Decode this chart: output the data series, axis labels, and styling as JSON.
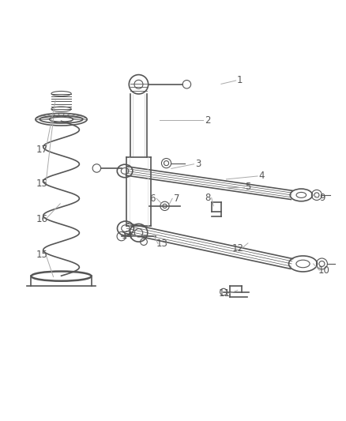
{
  "background_color": "#ffffff",
  "line_color": "#555555",
  "label_color": "#555555",
  "label_line_color": "#aaaaaa",
  "figsize": [
    4.38,
    5.33
  ],
  "dpi": 100
}
